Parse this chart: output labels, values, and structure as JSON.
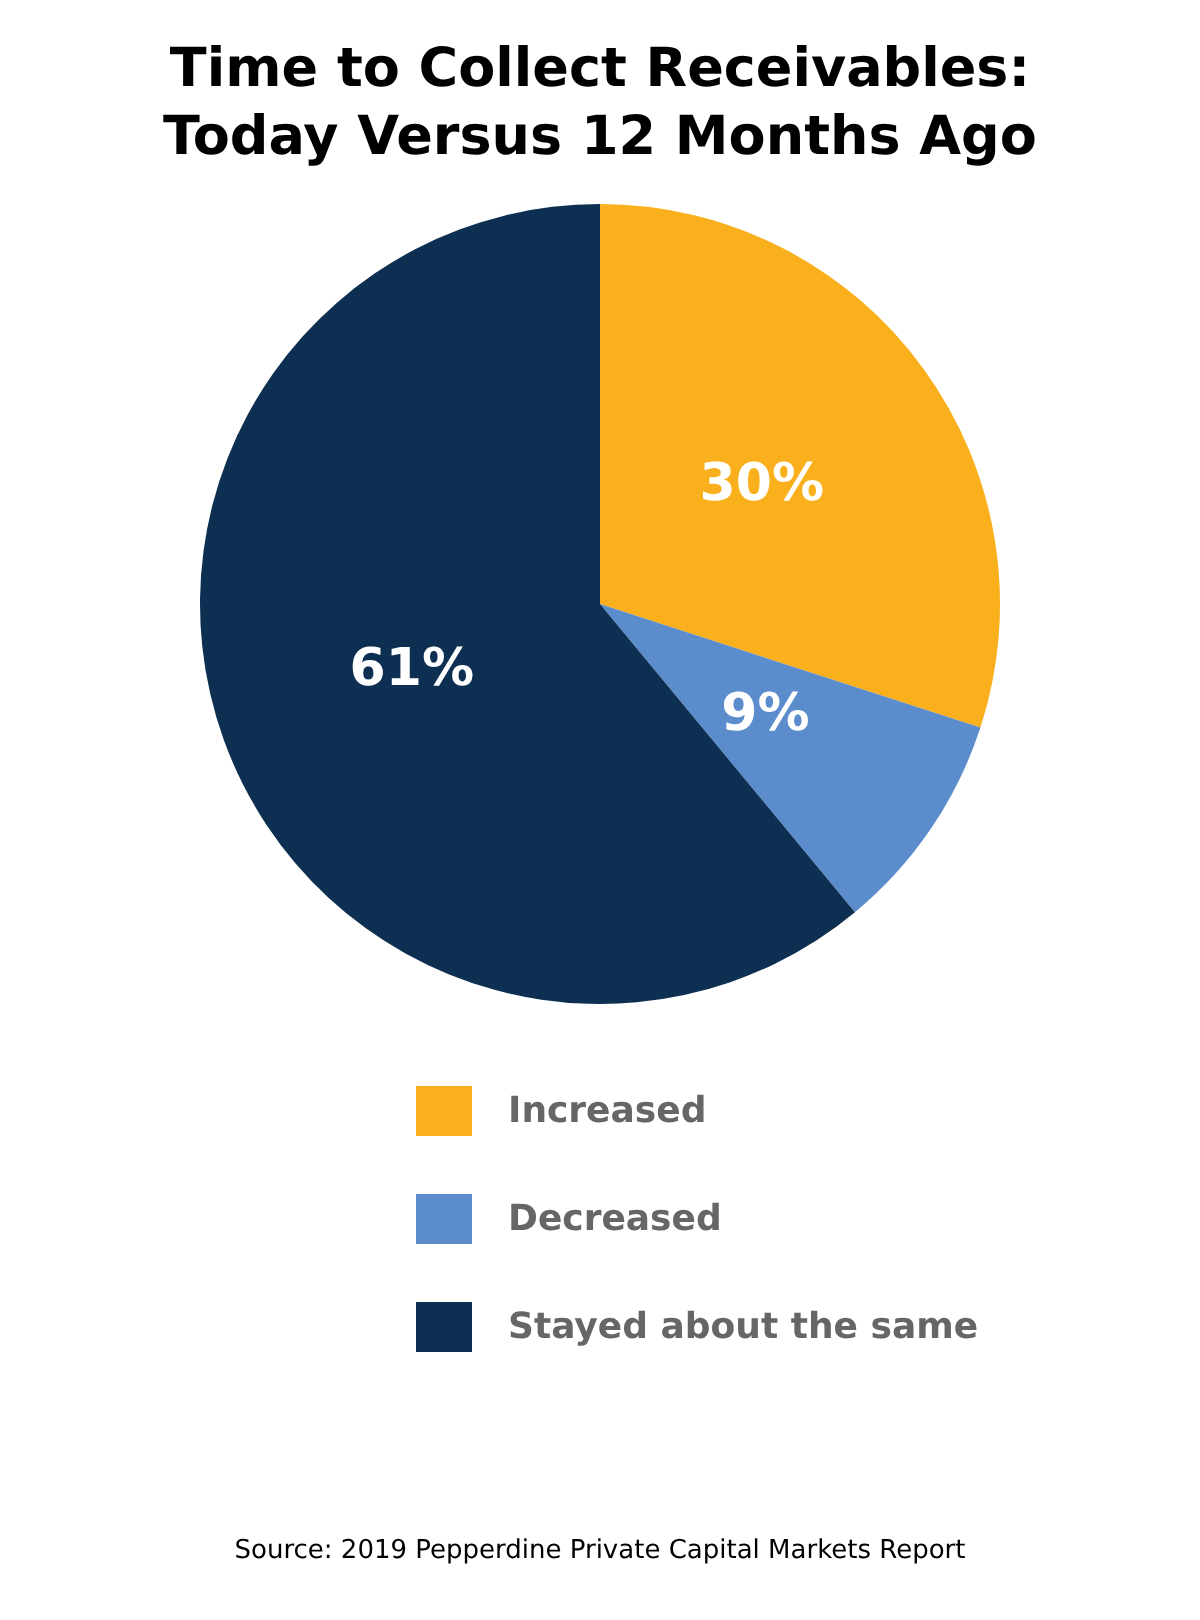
{
  "chart_data": {
    "type": "pie",
    "title": "Time to Collect Receivables: Today Versus 12 Months Ago",
    "categories": [
      "Increased",
      "Decreased",
      "Stayed about the same"
    ],
    "values": [
      30,
      9,
      61
    ],
    "colors": [
      "#f9b01c",
      "#5b8ccb",
      "#0d2f52"
    ],
    "value_labels": [
      "30%",
      "9%",
      "61%"
    ],
    "legend": "bottom",
    "annotations": [
      "Source: 2019 Pepperdine Private Capital Markets Report"
    ]
  }
}
